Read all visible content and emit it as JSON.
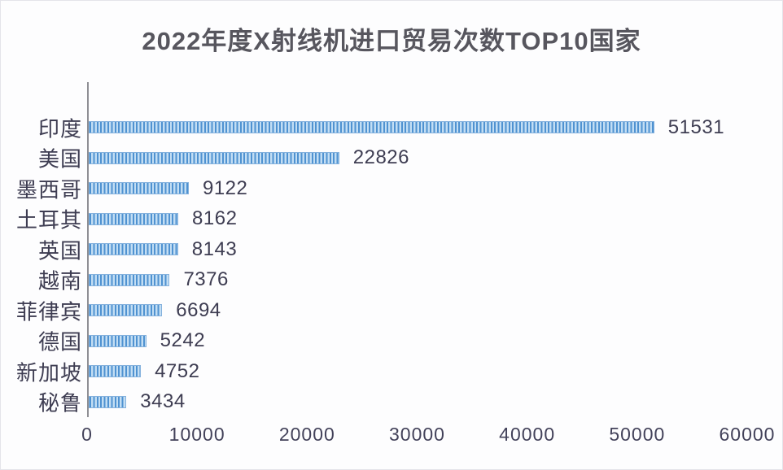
{
  "chart_data": {
    "type": "bar",
    "orientation": "horizontal",
    "title": "2022年度X射线机进口贸易次数TOP10国家",
    "categories": [
      "印度",
      "美国",
      "墨西哥",
      "土耳其",
      "英国",
      "越南",
      "菲律宾",
      "德国",
      "新加坡",
      "秘鲁"
    ],
    "values": [
      51531,
      22826,
      9122,
      8162,
      8143,
      7376,
      6694,
      5242,
      4752,
      3434
    ],
    "data_labels_shown": true,
    "xlabel": "",
    "ylabel": "",
    "xlim": [
      0,
      60000
    ],
    "x_ticks": [
      "0",
      "10000",
      "20000",
      "30000",
      "40000",
      "50000",
      "60000"
    ],
    "grid": false,
    "legend": false,
    "colors": {
      "bar_stripe": "#4f92d1",
      "bar_fill": "#c3def4",
      "bar_border": "#84b1dd",
      "title_text": "#57565e",
      "label_text": "#3e3d52",
      "tick_text": "#43425a",
      "axis_line": "#8f8f94",
      "background": "#fdfdfe"
    }
  }
}
